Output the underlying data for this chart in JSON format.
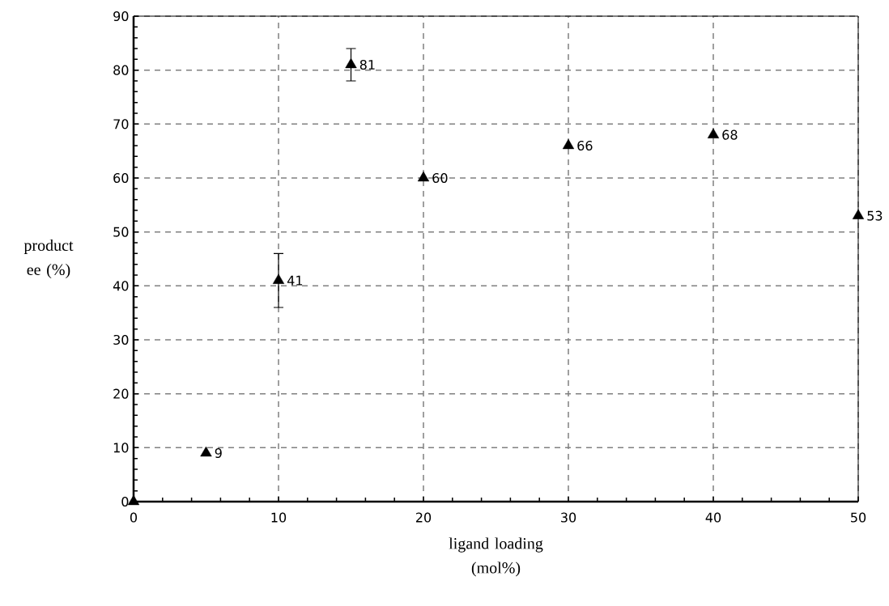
{
  "chart_data": {
    "type": "scatter",
    "xlabel": "ligand loading (mol%)",
    "ylabel": "product ee (%)",
    "x": [
      0,
      5,
      10,
      15,
      20,
      30,
      40,
      50
    ],
    "values": [
      0,
      9,
      41,
      81,
      60,
      66,
      68,
      53
    ],
    "errors": [
      null,
      null,
      5,
      3,
      null,
      null,
      null,
      null
    ],
    "value_labels": [
      null,
      "9",
      "41",
      "81",
      "60",
      "66",
      "68",
      "53"
    ],
    "color": "#000000",
    "marker": "triangle",
    "xlim": [
      0,
      50
    ],
    "xticks": [
      0,
      10,
      20,
      30,
      40,
      50
    ],
    "ylim": [
      0,
      90
    ],
    "yticks": [
      0,
      10,
      20,
      30,
      40,
      50,
      60,
      70,
      80,
      90
    ],
    "grid": true
  }
}
